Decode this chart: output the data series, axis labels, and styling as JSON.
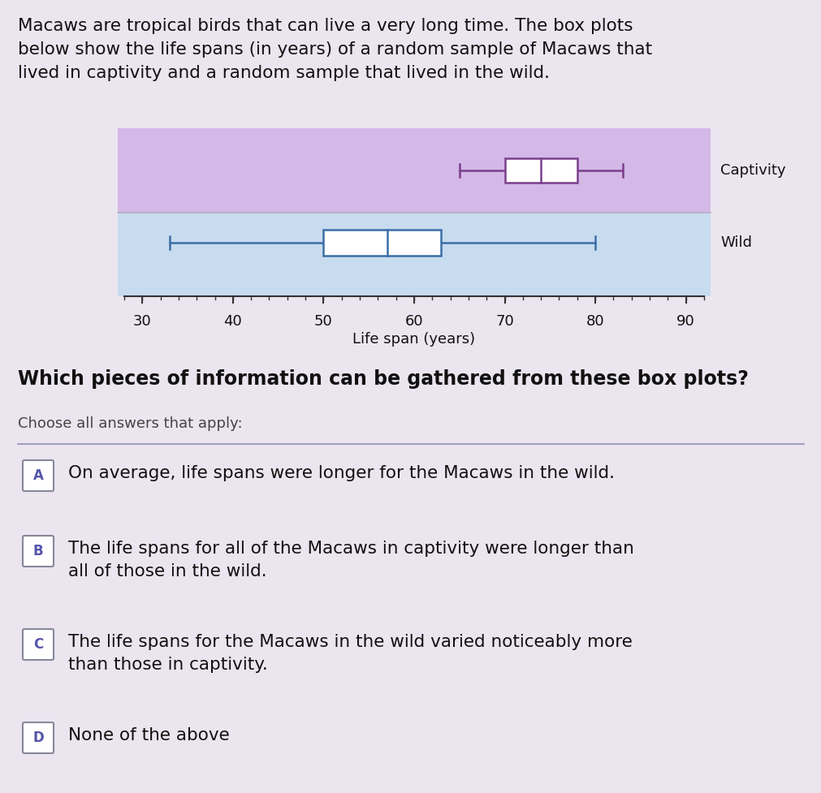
{
  "title_text": "Macaws are tropical birds that can live a very long time. The box plots\nbelow show the life spans (in years) of a random sample of Macaws that\nlived in captivity and a random sample that lived in the wild.",
  "question_text": "Which pieces of information can be gathered from these box plots?",
  "choose_text": "Choose all answers that apply:",
  "answers": [
    {
      "label": "A",
      "text": "On average, life spans were longer for the Macaws in the wild."
    },
    {
      "label": "B",
      "text": "The life spans for all of the Macaws in captivity were longer than\nall of those in the wild."
    },
    {
      "label": "C",
      "text": "The life spans for the Macaws in the wild varied noticeably more\nthan those in captivity."
    },
    {
      "label": "D",
      "text": "None of the above"
    }
  ],
  "captivity": {
    "min": 65,
    "q1": 70,
    "median": 74,
    "q3": 78,
    "max": 83,
    "label": "Captivity",
    "box_color": "#7B3F8C",
    "bg_color": "#D4B8E8"
  },
  "wild": {
    "min": 33,
    "q1": 50,
    "median": 57,
    "q3": 63,
    "max": 80,
    "label": "Wild",
    "box_color": "#3B6EA5",
    "bg_color": "#C8DCF0"
  },
  "xmin": 28,
  "xmax": 92,
  "xticks": [
    30,
    40,
    50,
    60,
    70,
    80,
    90
  ],
  "xlabel": "Life span (years)",
  "page_bg": "#EAE5EF",
  "separator_color": "#9090B0",
  "title_fontsize": 15.5,
  "question_fontsize": 17,
  "choose_fontsize": 13,
  "answer_fontsize": 15.5,
  "label_color": "#5555aa"
}
